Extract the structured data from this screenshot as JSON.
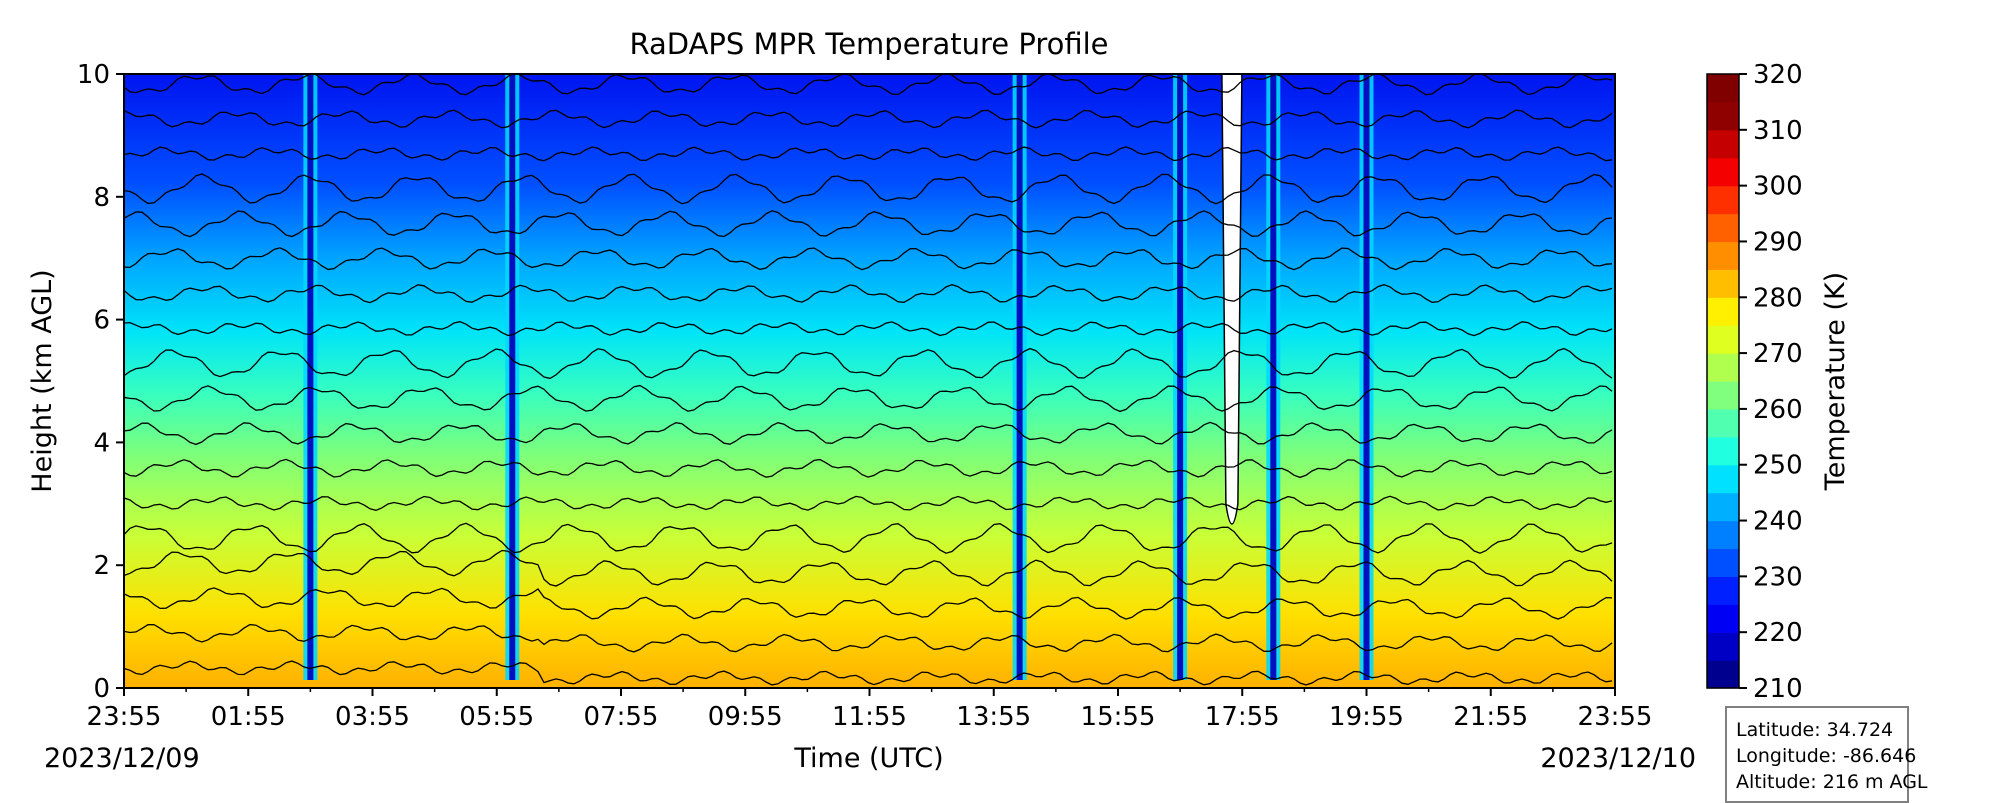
{
  "chart_data": {
    "type": "heatmap",
    "subtype": "filled-contour time-height section",
    "title": "RaDAPS MPR Temperature Profile",
    "xlabel": "Time (UTC)",
    "ylabel": "Height (km AGL)",
    "x_ticks": [
      "23:55",
      "01:55",
      "03:55",
      "05:55",
      "07:55",
      "09:55",
      "11:55",
      "13:55",
      "15:55",
      "17:55",
      "19:55",
      "21:55",
      "23:55"
    ],
    "x_range": [
      "2023-12-09 23:55",
      "2023-12-10 23:55"
    ],
    "date_left": "2023/12/09",
    "date_right": "2023/12/10",
    "y_ticks": [
      0,
      2,
      4,
      6,
      8,
      10
    ],
    "ylim": [
      0,
      10
    ],
    "colorbar": {
      "label": "Temperature (K)",
      "ticks": [
        210,
        220,
        230,
        240,
        250,
        260,
        270,
        280,
        290,
        300,
        310,
        320
      ],
      "range": [
        210,
        320
      ],
      "level_step": 5,
      "colormap": "jet"
    },
    "contour_lines": "black, every 5 K",
    "profile_samples": [
      {
        "time": "00:55",
        "heights_km": [
          0,
          1,
          2,
          4,
          6,
          8,
          10
        ],
        "temperature_K": [
          291,
          287,
          280,
          268,
          254,
          238,
          224
        ]
      },
      {
        "time": "03:55",
        "heights_km": [
          0,
          1,
          2,
          4,
          6,
          8,
          10
        ],
        "temperature_K": [
          288,
          283,
          277,
          266,
          252,
          236,
          222
        ]
      },
      {
        "time": "09:55",
        "heights_km": [
          0,
          1,
          2,
          4,
          6,
          8,
          10
        ],
        "temperature_K": [
          283,
          279,
          275,
          265,
          252,
          238,
          226
        ]
      },
      {
        "time": "13:55",
        "heights_km": [
          0,
          1,
          2,
          4,
          6,
          8,
          10
        ],
        "temperature_K": [
          281,
          278,
          275,
          264,
          251,
          236,
          223
        ]
      },
      {
        "time": "22:55",
        "heights_km": [
          0,
          1,
          2,
          4,
          6,
          8,
          10
        ],
        "temperature_K": [
          280,
          277,
          272,
          262,
          248,
          233,
          219
        ]
      }
    ],
    "spikes": [
      {
        "time": "02:55",
        "note": "cold spike"
      },
      {
        "time": "06:10",
        "note": "cold spike"
      },
      {
        "time": "14:20",
        "note": "cold spike"
      },
      {
        "time": "16:55",
        "note": "cold spike"
      },
      {
        "time": "17:45",
        "note": "missing data"
      },
      {
        "time": "18:25",
        "note": "cold spike"
      },
      {
        "time": "19:55",
        "note": "cold spike"
      }
    ],
    "annotation": {
      "latitude": "Latitude: 34.724",
      "longitude": "Longitude: -86.646",
      "altitude": "Altitude: 216 m AGL"
    }
  }
}
